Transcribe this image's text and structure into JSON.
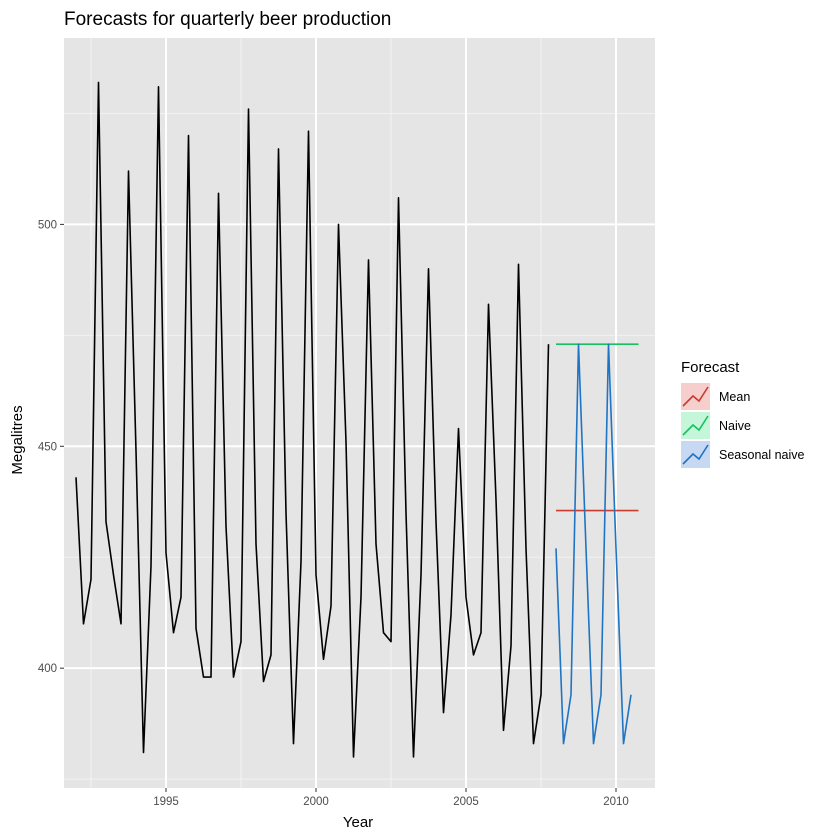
{
  "chart_data": {
    "type": "line",
    "title": "Forecasts for quarterly beer production",
    "xlabel": "Year",
    "ylabel": "Megalitres",
    "xlim": [
      1991.6,
      2011.3
    ],
    "ylim": [
      373,
      542
    ],
    "x_ticks": [
      1995,
      2000,
      2005,
      2010
    ],
    "y_ticks": [
      400,
      450,
      500
    ],
    "x_minor": [
      1992.5,
      1997.5,
      2002.5,
      2007.5
    ],
    "y_minor": [
      375,
      425,
      475,
      525
    ],
    "background": "#e5e5e5",
    "grid": true,
    "legend": {
      "title": "Forecast",
      "position": "right",
      "entries": [
        {
          "label": "Mean",
          "color": "#c83c30",
          "fill": "#f6cfcc"
        },
        {
          "label": "Naive",
          "color": "#16c25f",
          "fill": "#c6f6da"
        },
        {
          "label": "Seasonal naive",
          "color": "#1f74c4",
          "fill": "#c6d8f2"
        }
      ]
    },
    "actual": {
      "color": "#000000",
      "start": 1992.0,
      "step": 0.25,
      "values": [
        443,
        410,
        420,
        532,
        433,
        421,
        410,
        512,
        449,
        381,
        423,
        531,
        426,
        408,
        416,
        520,
        409,
        398,
        398,
        507,
        432,
        398,
        406,
        526,
        428,
        397,
        403,
        517,
        435,
        383,
        424,
        521,
        421,
        402,
        414,
        500,
        451,
        380,
        416,
        492,
        428,
        408,
        406,
        506,
        435,
        380,
        421,
        490,
        433,
        390,
        412,
        454,
        416,
        403,
        408,
        482,
        438,
        386,
        405,
        491,
        427,
        383,
        394,
        473
      ]
    },
    "forecasts": [
      {
        "name": "Mean",
        "color": "#c83c30",
        "x": [
          2008.0,
          2010.75
        ],
        "y": [
          435.5,
          435.5
        ]
      },
      {
        "name": "Naive",
        "color": "#16c25f",
        "x": [
          2008.0,
          2010.75
        ],
        "y": [
          473,
          473
        ]
      },
      {
        "name": "Seasonal naive",
        "color": "#1f74c4",
        "start": 2008.0,
        "step": 0.25,
        "values": [
          427,
          383,
          394,
          473,
          427,
          383,
          394,
          473,
          427,
          383,
          394
        ]
      }
    ]
  }
}
